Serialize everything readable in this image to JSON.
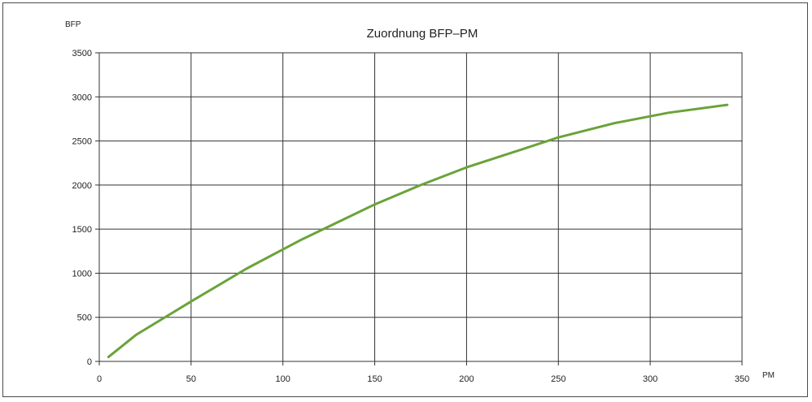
{
  "chart_data": {
    "type": "line",
    "title": "Zuordnung BFP–PM",
    "xlabel": "PM",
    "ylabel": "BFP",
    "xlim": [
      0,
      350
    ],
    "ylim": [
      0,
      3500
    ],
    "xticks": [
      0,
      50,
      100,
      150,
      200,
      250,
      300,
      350
    ],
    "yticks": [
      0,
      500,
      1000,
      1500,
      2000,
      2500,
      3000,
      3500
    ],
    "grid": true,
    "legend": "none",
    "series": [
      {
        "color": "#6aa339",
        "x": [
          5,
          20,
          50,
          80,
          110,
          150,
          175,
          200,
          225,
          250,
          280,
          310,
          342
        ],
        "y": [
          50,
          300,
          680,
          1050,
          1380,
          1780,
          2000,
          2200,
          2370,
          2540,
          2700,
          2820,
          2910
        ]
      }
    ]
  }
}
